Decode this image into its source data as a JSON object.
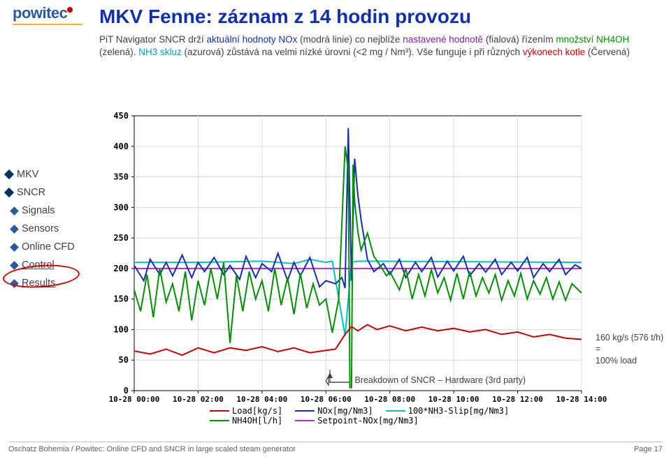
{
  "logo_text": "powitec",
  "title": "MKV Fenne: záznam z 14 hodin provozu",
  "desc_parts": {
    "p1": "PiT Navigator SNCR drží ",
    "p2": "aktuální hodnoty NOx ",
    "p3": "(modrá linie) co nejblíže ",
    "p4": "nastavené hodnotě ",
    "p5": "(fialová) řízením ",
    "p6": "množství NH4OH ",
    "p7": "(zelená). ",
    "p8": "NH3 skluz ",
    "p9": "(azurová) zůstává na velmi nízké úrovni        (<2 mg / Nm³). Vše funguje i při různých ",
    "p10": "výkonech kotle ",
    "p11": "(Červená)"
  },
  "sidebar": [
    {
      "label": "MKV",
      "indent": 0
    },
    {
      "label": "SNCR",
      "indent": 0
    },
    {
      "label": "Signals",
      "indent": 1
    },
    {
      "label": "Sensors",
      "indent": 1
    },
    {
      "label": "Online CFD",
      "indent": 1
    },
    {
      "label": "Control",
      "indent": 1,
      "underline": true
    },
    {
      "label": "Results",
      "indent": 1,
      "underline": true
    }
  ],
  "callout": {
    "line1": "160 kg/s (576 t/h)",
    "line2": "=",
    "line3": "100% load"
  },
  "breakdown_label": "Breakdown of SNCR – Hardware (3rd party)",
  "footer_left": "Oschatz Bohemia / Powitec: Online CFD and SNCR in large scaled steam generator",
  "footer_right": "Page 17",
  "legend_items": [
    {
      "label": "Load[kg/s]",
      "color": "#cc0000"
    },
    {
      "label": "NOx[mg/Nm3]",
      "color": "#1030b0"
    },
    {
      "label": "100*NH3-Slip[mg/Nm3]",
      "color": "#00c0d0"
    },
    {
      "label": "NH4OH[l/h]",
      "color": "#009000"
    },
    {
      "label": "Setpoint-NOx[mg/Nm3]",
      "color": "#b030c0"
    }
  ],
  "chart": {
    "type": "line",
    "background_color": "#ffffff",
    "grid_color": "#d8d8d8",
    "axis_color": "#000000",
    "font_family": "monospace",
    "tick_fontsize": 12,
    "tick_fontweight": "bold",
    "x_range_hours": [
      0,
      14
    ],
    "ylim": [
      0,
      450
    ],
    "ytick_step": 50,
    "xticks": [
      "10-28 00:00",
      "10-28 02:00",
      "10-28 04:00",
      "10-28 06:00",
      "10-28 08:00",
      "10-28 10:00",
      "10-28 12:00",
      "10-28 14:00"
    ],
    "series": {
      "setpoint": {
        "color": "#b030c0",
        "width": 2,
        "pts": [
          [
            0,
            200
          ],
          [
            14,
            200
          ]
        ]
      },
      "nh3slip": {
        "color": "#00c0d0",
        "width": 2,
        "pts": [
          [
            0,
            210
          ],
          [
            2,
            210
          ],
          [
            4,
            212
          ],
          [
            5,
            208
          ],
          [
            5.5,
            215
          ],
          [
            6,
            210
          ],
          [
            6.2,
            212
          ],
          [
            6.6,
            90
          ],
          [
            6.8,
            210
          ],
          [
            7,
            212
          ],
          [
            14,
            210
          ]
        ]
      },
      "nox": {
        "color": "#1030b0",
        "width": 2,
        "pts": [
          [
            0,
            205
          ],
          [
            0.3,
            180
          ],
          [
            0.5,
            215
          ],
          [
            0.8,
            190
          ],
          [
            1.0,
            210
          ],
          [
            1.2,
            188
          ],
          [
            1.5,
            222
          ],
          [
            1.8,
            185
          ],
          [
            2.0,
            210
          ],
          [
            2.2,
            195
          ],
          [
            2.5,
            218
          ],
          [
            2.8,
            190
          ],
          [
            3.0,
            205
          ],
          [
            3.3,
            182
          ],
          [
            3.5,
            220
          ],
          [
            3.8,
            185
          ],
          [
            4.0,
            208
          ],
          [
            4.3,
            195
          ],
          [
            4.5,
            225
          ],
          [
            4.8,
            180
          ],
          [
            5.0,
            210
          ],
          [
            5.2,
            188
          ],
          [
            5.5,
            218
          ],
          [
            5.8,
            170
          ],
          [
            6.0,
            180
          ],
          [
            6.3,
            175
          ],
          [
            6.5,
            185
          ],
          [
            6.6,
            168
          ],
          [
            6.7,
            430
          ],
          [
            6.8,
            180
          ],
          [
            6.9,
            380
          ],
          [
            7.0,
            320
          ],
          [
            7.1,
            280
          ],
          [
            7.3,
            215
          ],
          [
            7.5,
            195
          ],
          [
            7.8,
            208
          ],
          [
            8.0,
            190
          ],
          [
            8.3,
            215
          ],
          [
            8.5,
            185
          ],
          [
            8.8,
            210
          ],
          [
            9.0,
            195
          ],
          [
            9.3,
            218
          ],
          [
            9.5,
            186
          ],
          [
            9.8,
            212
          ],
          [
            10.0,
            196
          ],
          [
            10.3,
            220
          ],
          [
            10.5,
            188
          ],
          [
            10.8,
            208
          ],
          [
            11.0,
            194
          ],
          [
            11.3,
            215
          ],
          [
            11.5,
            190
          ],
          [
            11.8,
            210
          ],
          [
            12.0,
            196
          ],
          [
            12.3,
            218
          ],
          [
            12.5,
            185
          ],
          [
            12.8,
            208
          ],
          [
            13.0,
            195
          ],
          [
            13.3,
            215
          ],
          [
            13.5,
            190
          ],
          [
            13.8,
            206
          ],
          [
            14.0,
            200
          ]
        ]
      },
      "nh4oh": {
        "color": "#009000",
        "width": 2,
        "pts": [
          [
            0,
            165
          ],
          [
            0.2,
            130
          ],
          [
            0.4,
            190
          ],
          [
            0.6,
            120
          ],
          [
            0.8,
            200
          ],
          [
            1.0,
            145
          ],
          [
            1.2,
            175
          ],
          [
            1.4,
            130
          ],
          [
            1.6,
            195
          ],
          [
            1.8,
            115
          ],
          [
            2.0,
            180
          ],
          [
            2.2,
            140
          ],
          [
            2.4,
            200
          ],
          [
            2.6,
            150
          ],
          [
            2.8,
            210
          ],
          [
            3.0,
            78
          ],
          [
            3.2,
            188
          ],
          [
            3.4,
            130
          ],
          [
            3.6,
            195
          ],
          [
            3.8,
            150
          ],
          [
            4.0,
            180
          ],
          [
            4.2,
            130
          ],
          [
            4.4,
            200
          ],
          [
            4.6,
            140
          ],
          [
            4.8,
            185
          ],
          [
            5.0,
            125
          ],
          [
            5.2,
            192
          ],
          [
            5.4,
            135
          ],
          [
            5.6,
            175
          ],
          [
            5.8,
            140
          ],
          [
            6.0,
            150
          ],
          [
            6.2,
            95
          ],
          [
            6.4,
            150
          ],
          [
            6.6,
            400
          ],
          [
            6.7,
            360
          ],
          [
            6.75,
            5
          ],
          [
            6.8,
            5
          ],
          [
            6.85,
            370
          ],
          [
            6.9,
            310
          ],
          [
            7.0,
            260
          ],
          [
            7.1,
            230
          ],
          [
            7.3,
            258
          ],
          [
            7.5,
            220
          ],
          [
            7.7,
            205
          ],
          [
            7.9,
            188
          ],
          [
            8.0,
            195
          ],
          [
            8.3,
            165
          ],
          [
            8.5,
            200
          ],
          [
            8.7,
            150
          ],
          [
            8.9,
            190
          ],
          [
            9.1,
            155
          ],
          [
            9.3,
            198
          ],
          [
            9.5,
            160
          ],
          [
            9.7,
            185
          ],
          [
            9.9,
            148
          ],
          [
            10.1,
            192
          ],
          [
            10.3,
            150
          ],
          [
            10.5,
            195
          ],
          [
            10.7,
            155
          ],
          [
            10.9,
            185
          ],
          [
            11.1,
            160
          ],
          [
            11.3,
            190
          ],
          [
            11.5,
            148
          ],
          [
            11.7,
            180
          ],
          [
            11.9,
            155
          ],
          [
            12.1,
            192
          ],
          [
            12.3,
            150
          ],
          [
            12.5,
            180
          ],
          [
            12.7,
            158
          ],
          [
            12.9,
            185
          ],
          [
            13.1,
            150
          ],
          [
            13.3,
            178
          ],
          [
            13.5,
            148
          ],
          [
            13.7,
            175
          ],
          [
            14.0,
            160
          ]
        ]
      },
      "load": {
        "color": "#cc0000",
        "width": 2,
        "pts": [
          [
            0,
            65
          ],
          [
            0.5,
            60
          ],
          [
            1.0,
            68
          ],
          [
            1.5,
            58
          ],
          [
            2.0,
            70
          ],
          [
            2.5,
            62
          ],
          [
            3.0,
            70
          ],
          [
            3.5,
            66
          ],
          [
            4.0,
            72
          ],
          [
            4.5,
            64
          ],
          [
            5.0,
            70
          ],
          [
            5.5,
            62
          ],
          [
            6.0,
            66
          ],
          [
            6.3,
            68
          ],
          [
            6.6,
            92
          ],
          [
            6.8,
            105
          ],
          [
            7.0,
            98
          ],
          [
            7.3,
            108
          ],
          [
            7.6,
            100
          ],
          [
            8.0,
            106
          ],
          [
            8.5,
            98
          ],
          [
            9.0,
            104
          ],
          [
            9.5,
            98
          ],
          [
            10.0,
            102
          ],
          [
            10.5,
            96
          ],
          [
            11.0,
            100
          ],
          [
            11.5,
            92
          ],
          [
            12.0,
            96
          ],
          [
            12.5,
            88
          ],
          [
            13.0,
            92
          ],
          [
            13.5,
            86
          ],
          [
            14.0,
            84
          ]
        ]
      }
    }
  }
}
